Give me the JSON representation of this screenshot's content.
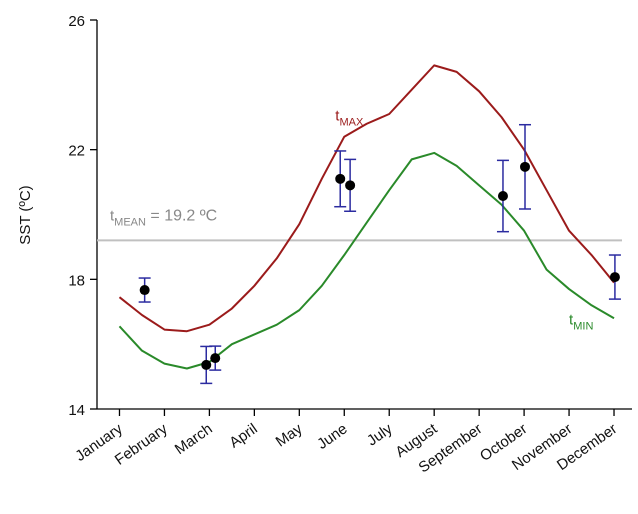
{
  "chart_data": {
    "type": "line",
    "y_label": "SST (ºC)",
    "xlim": [
      0.5,
      12.4
    ],
    "xticks": [
      {
        "value": 1,
        "label": "January"
      },
      {
        "value": 2,
        "label": "February"
      },
      {
        "value": 3,
        "label": "March"
      },
      {
        "value": 4,
        "label": "April"
      },
      {
        "value": 5,
        "label": "May"
      },
      {
        "value": 6,
        "label": "June"
      },
      {
        "value": 7,
        "label": "July"
      },
      {
        "value": 8,
        "label": "August"
      },
      {
        "value": 9,
        "label": "September"
      },
      {
        "value": 10,
        "label": "October"
      },
      {
        "value": 11,
        "label": "November"
      },
      {
        "value": 12,
        "label": "December"
      }
    ],
    "ylim": [
      14,
      26
    ],
    "yticks": [
      14,
      18,
      22,
      26
    ],
    "mean": {
      "value": 19.2,
      "color": "#c0c0c0",
      "label_base": "t",
      "label_sub": "MEAN",
      "label_rest": " = 19.2 ºC"
    },
    "series": [
      {
        "type": "line",
        "label_base": "t",
        "label_sub": "MAX",
        "label_at": [
          5.8,
          22.9
        ],
        "color": "#9b1b1b",
        "x": [
          1,
          1.5,
          2,
          2.5,
          3,
          3.5,
          4,
          4.5,
          5,
          5.5,
          6,
          6.5,
          7,
          7.5,
          8,
          8.5,
          9,
          9.5,
          10,
          10.5,
          11,
          11.5,
          12
        ],
        "values": [
          17.45,
          16.9,
          16.45,
          16.4,
          16.6,
          17.1,
          17.8,
          18.65,
          19.7,
          21.1,
          22.4,
          22.8,
          23.1,
          23.85,
          24.6,
          24.4,
          23.8,
          23.0,
          22.0,
          20.75,
          19.5,
          18.75,
          17.9
        ]
      },
      {
        "type": "line",
        "label_base": "t",
        "label_sub": "MIN",
        "label_at": [
          11.0,
          16.6
        ],
        "color": "#2a8a2a",
        "x": [
          1,
          1.5,
          2,
          2.5,
          3,
          3.5,
          4,
          4.5,
          5,
          5.5,
          6,
          6.5,
          7,
          7.5,
          8,
          8.5,
          9,
          9.5,
          10,
          10.5,
          11,
          11.5,
          12
        ],
        "values": [
          16.55,
          15.8,
          15.4,
          15.25,
          15.45,
          16.0,
          16.3,
          16.6,
          17.05,
          17.8,
          18.75,
          19.75,
          20.75,
          21.7,
          21.9,
          21.5,
          20.9,
          20.3,
          19.5,
          18.3,
          17.7,
          17.2,
          16.8
        ]
      },
      {
        "type": "scatter",
        "color": "#000000",
        "error_color": "#2b2ba0",
        "x": [
          1.56,
          2.93,
          3.13,
          5.91,
          6.13,
          9.53,
          10.02,
          12.02
        ],
        "values": [
          17.67,
          15.36,
          15.57,
          21.1,
          20.9,
          20.57,
          21.47,
          18.07
        ],
        "errors": [
          0.37,
          0.57,
          0.37,
          0.86,
          0.8,
          1.1,
          1.3,
          0.68
        ]
      }
    ]
  }
}
